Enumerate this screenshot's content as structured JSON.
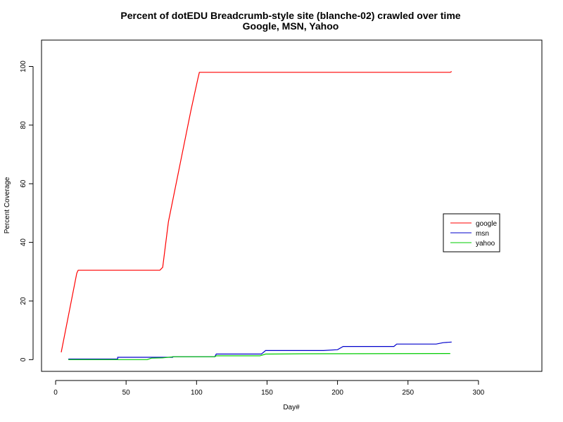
{
  "chart_data": {
    "type": "line",
    "title": "Percent of dotEDU Breadcrumb-style site (blanche-02) crawled over time",
    "subtitle": "Google, MSN, Yahoo",
    "xlabel": "Day#",
    "ylabel": "Percent Coverage",
    "xlim": [
      -10,
      345
    ],
    "ylim": [
      -4,
      109
    ],
    "xticks": [
      0,
      50,
      100,
      150,
      200,
      250,
      300
    ],
    "yticks": [
      0,
      20,
      40,
      60,
      80,
      100
    ],
    "grid": false,
    "legend_position": "right",
    "series": [
      {
        "name": "google",
        "color": "#ff0000",
        "points": [
          [
            4,
            2.5
          ],
          [
            15,
            29.5
          ],
          [
            16,
            30.5
          ],
          [
            74,
            30.5
          ],
          [
            76,
            31.5
          ],
          [
            80,
            47
          ],
          [
            96,
            85
          ],
          [
            101,
            96
          ],
          [
            102,
            98
          ],
          [
            280,
            98
          ],
          [
            281,
            98.3
          ]
        ]
      },
      {
        "name": "msn",
        "color": "#0000cc",
        "points": [
          [
            9,
            0.2
          ],
          [
            44,
            0.2
          ],
          [
            44,
            0.8
          ],
          [
            83,
            0.8
          ],
          [
            83,
            1.0
          ],
          [
            113,
            1.0
          ],
          [
            114,
            1.9
          ],
          [
            146,
            1.9
          ],
          [
            149,
            3.1
          ],
          [
            190,
            3.1
          ],
          [
            200,
            3.4
          ],
          [
            204,
            4.5
          ],
          [
            240,
            4.5
          ],
          [
            242,
            5.3
          ],
          [
            270,
            5.3
          ],
          [
            275,
            5.8
          ],
          [
            281,
            6.0
          ]
        ]
      },
      {
        "name": "yahoo",
        "color": "#00cc00",
        "points": [
          [
            9,
            0
          ],
          [
            65,
            0
          ],
          [
            68,
            0.5
          ],
          [
            76,
            0.6
          ],
          [
            84,
            1.0
          ],
          [
            113,
            1.0
          ],
          [
            114,
            1.3
          ],
          [
            145,
            1.3
          ],
          [
            149,
            1.9
          ],
          [
            175,
            2.0
          ],
          [
            280,
            2.1
          ]
        ]
      }
    ]
  }
}
